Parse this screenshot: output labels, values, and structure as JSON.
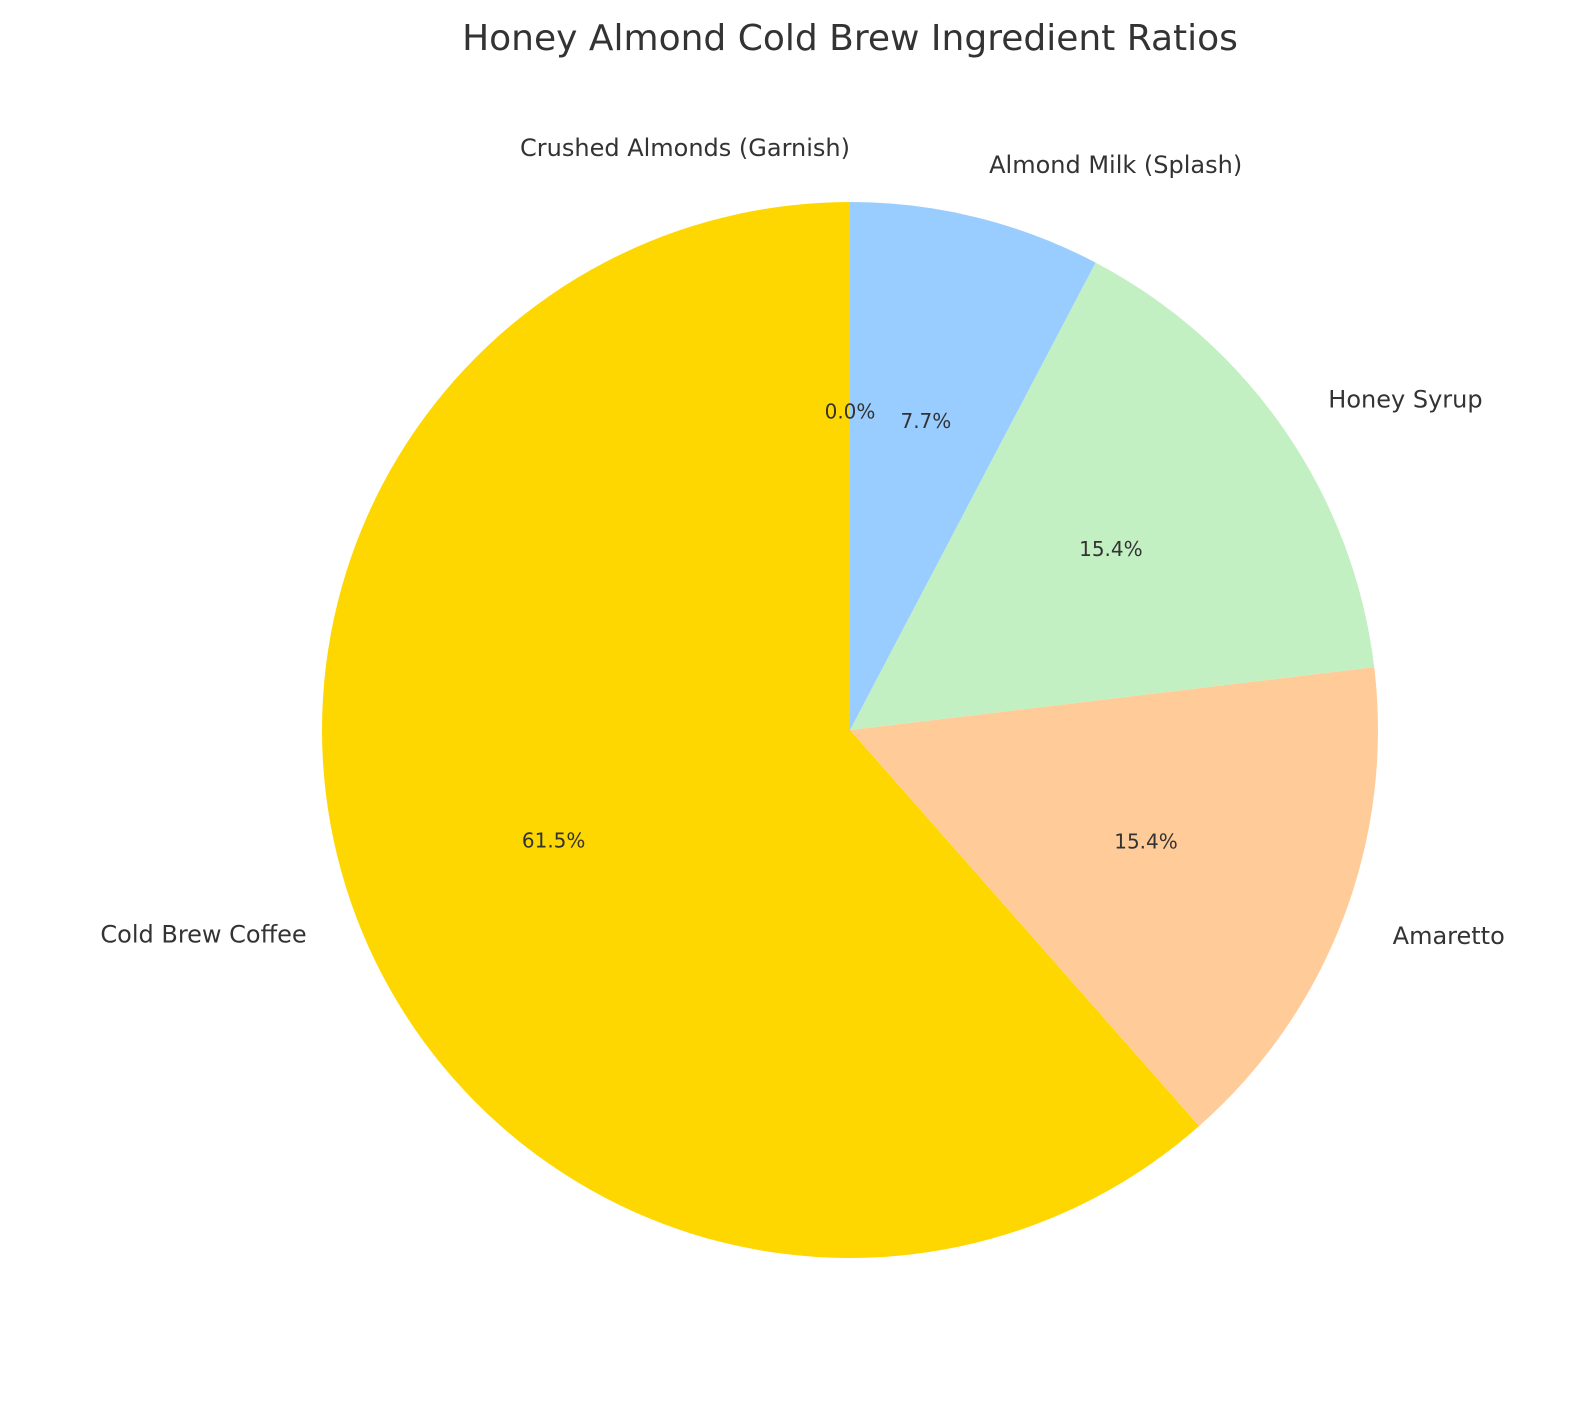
{
  "chart_data": {
    "type": "pie",
    "title": "Honey Almond Cold Brew Ingredient Ratios",
    "categories": [
      "Cold Brew Coffee",
      "Amaretto",
      "Honey Syrup",
      "Almond Milk (Splash)",
      "Crushed Almonds (Garnish)"
    ],
    "values": [
      61.5,
      15.4,
      15.4,
      7.7,
      0.0
    ],
    "value_labels": [
      "61.5%",
      "15.4%",
      "15.4%",
      "7.7%",
      "0.0%"
    ],
    "colors": [
      "#FFD700",
      "#FFCC99",
      "#C3F0C2",
      "#99CCFF",
      "#D2B48C"
    ]
  }
}
